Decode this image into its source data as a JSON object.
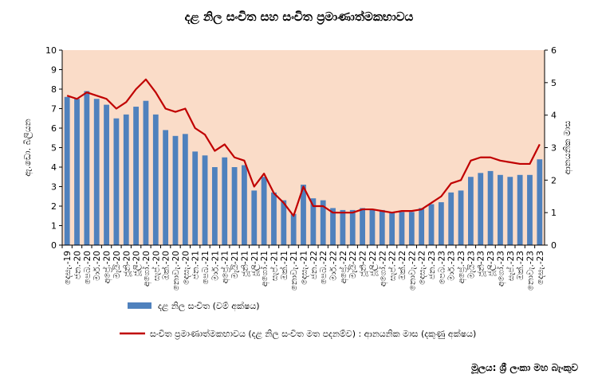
{
  "chart_data": {
    "type": "bar+line",
    "title": "දළ නිල සංචිත සහ සංචිත ප්‍රමාණාත්මකභාවය",
    "ylabel_left": "ඇ.ඩො. බිලියන",
    "ylabel_right": "ආනයනික මාස",
    "ylim_left": [
      0,
      10
    ],
    "ylim_right": [
      0,
      6
    ],
    "yticks_left": [
      "0",
      "1",
      "2",
      "3",
      "4",
      "5",
      "6",
      "7",
      "8",
      "9",
      "10"
    ],
    "yticks_right": [
      "0",
      "1",
      "2",
      "3",
      "4",
      "5",
      "6"
    ],
    "categories": [
      "දෙසැ.-19",
      "ජන.-20",
      "පෙබ.-20",
      "මාර්.-20",
      "අප්‍රේ.-20",
      "මැයි-20",
      "ජූනි-20",
      "ජූලි-20",
      "අගෝ.-20",
      "සැප්.-20",
      "ඔක්.-20",
      "නොවැ.-20",
      "දෙසැ.-20",
      "ජන.-21",
      "පෙබ.-21",
      "මාර්.-21",
      "අප්‍රේ.-21",
      "මැයි-21",
      "ජූනි-21",
      "ජූලි-21",
      "අගෝ.-21",
      "සැප්.-21",
      "ඔක්.-21",
      "නොවැ.-21",
      "දෙසැ.-21",
      "ජන.-22",
      "පෙබ.-22",
      "මාර්.-22",
      "අප්‍රේ.-22",
      "මැයි-22",
      "ජූනි-22",
      "ජූලි-22",
      "අගෝ.-22",
      "සැප්.-22",
      "ඔක්.-22",
      "නොවැ.-22",
      "දෙසැ.-22",
      "ජන.-23",
      "පෙබ.-23",
      "මාර්.-23",
      "අප්‍රේ.-23",
      "මැයි-23",
      "ජූනි-23",
      "ජූලි-23",
      "අගෝ.-23",
      "සැප්.-23",
      "ඔක්.-23",
      "නොවැ.-23",
      "දෙසැ.-23"
    ],
    "series": [
      {
        "name": "දළ නිල සංචිත (වම් අක්ෂය)",
        "type": "bar",
        "axis": "left",
        "color": "#4F81BD",
        "values": [
          7.6,
          7.5,
          7.9,
          7.5,
          7.2,
          6.5,
          6.7,
          7.1,
          7.4,
          6.7,
          5.9,
          5.6,
          5.7,
          4.8,
          4.6,
          4.0,
          4.5,
          4.0,
          4.1,
          2.8,
          3.5,
          2.7,
          2.3,
          1.6,
          3.1,
          2.4,
          2.3,
          1.9,
          1.8,
          1.8,
          1.9,
          1.8,
          1.8,
          1.7,
          1.7,
          1.7,
          1.9,
          2.1,
          2.2,
          2.7,
          2.8,
          3.5,
          3.7,
          3.8,
          3.6,
          3.5,
          3.6,
          3.6,
          4.4
        ]
      },
      {
        "name": "සංචිත ප්‍රමාණාත්මකභාවය (දළ නිල සංචිත මත පදනම්ව) : ආනයනික මාස (දකුණු අක්ෂය)",
        "type": "line",
        "axis": "right",
        "color": "#C00000",
        "values": [
          4.6,
          4.5,
          4.7,
          4.6,
          4.5,
          4.2,
          4.4,
          4.8,
          5.1,
          4.7,
          4.2,
          4.1,
          4.2,
          3.6,
          3.4,
          2.9,
          3.1,
          2.7,
          2.6,
          1.8,
          2.2,
          1.6,
          1.3,
          0.9,
          1.8,
          1.2,
          1.2,
          1.0,
          1.0,
          1.0,
          1.1,
          1.1,
          1.05,
          1.0,
          1.05,
          1.05,
          1.1,
          1.3,
          1.5,
          1.9,
          2.0,
          2.6,
          2.7,
          2.7,
          2.6,
          2.55,
          2.5,
          2.5,
          3.1
        ]
      }
    ],
    "plot_background": "#FADCC8"
  },
  "source_label": "මූලය: ශ්‍රී ලංකා මහ බැංකුව"
}
